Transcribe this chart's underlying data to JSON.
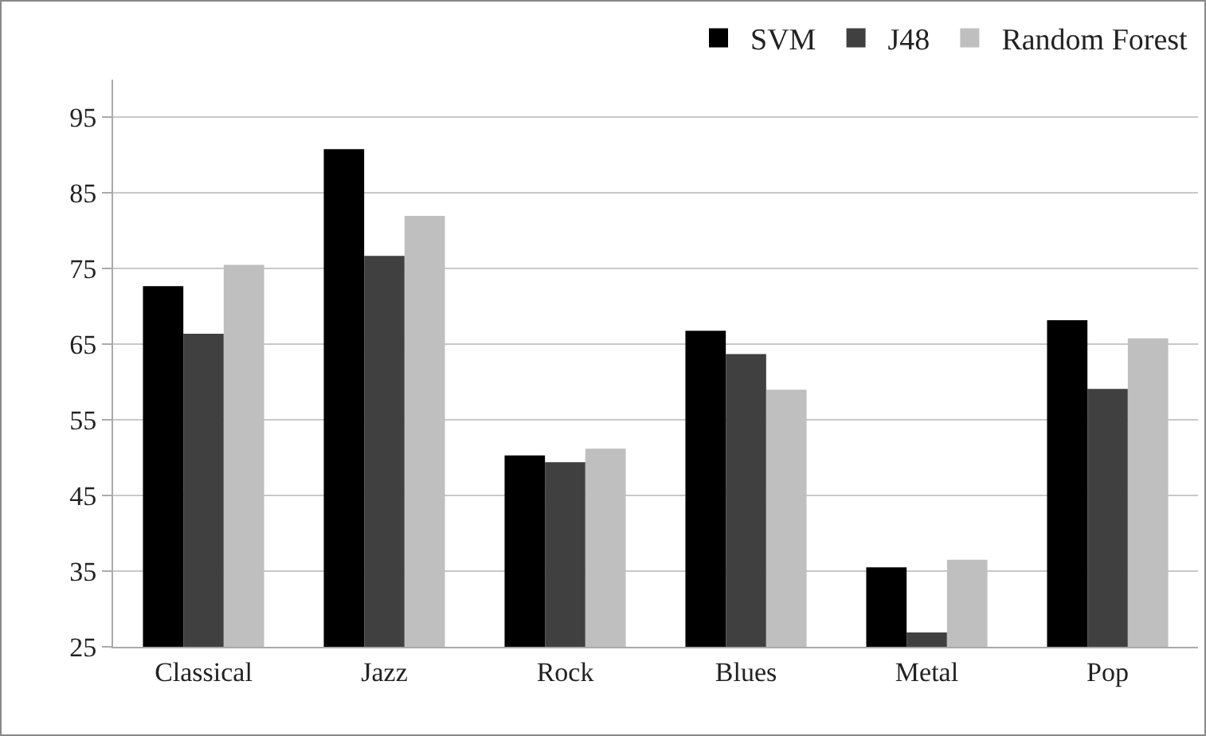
{
  "chart_data": {
    "type": "bar",
    "categories": [
      "Classical",
      "Jazz",
      "Rock",
      "Blues",
      "Metal",
      "Pop"
    ],
    "series": [
      {
        "name": "SVM",
        "color": "#000000",
        "values": [
          72.7,
          90.8,
          50.3,
          66.8,
          35.5,
          68.2
        ]
      },
      {
        "name": "J48",
        "color": "#404040",
        "values": [
          66.4,
          76.7,
          49.4,
          63.7,
          26.9,
          59.1
        ]
      },
      {
        "name": "Random Forest",
        "color": "#bfbfbf",
        "values": [
          75.5,
          82.0,
          51.2,
          59.0,
          36.5,
          65.8
        ]
      }
    ],
    "ylim": [
      25,
      100
    ],
    "yticks": [
      25,
      35,
      45,
      55,
      65,
      75,
      85,
      95
    ],
    "grid": "y",
    "legend": "top right"
  }
}
